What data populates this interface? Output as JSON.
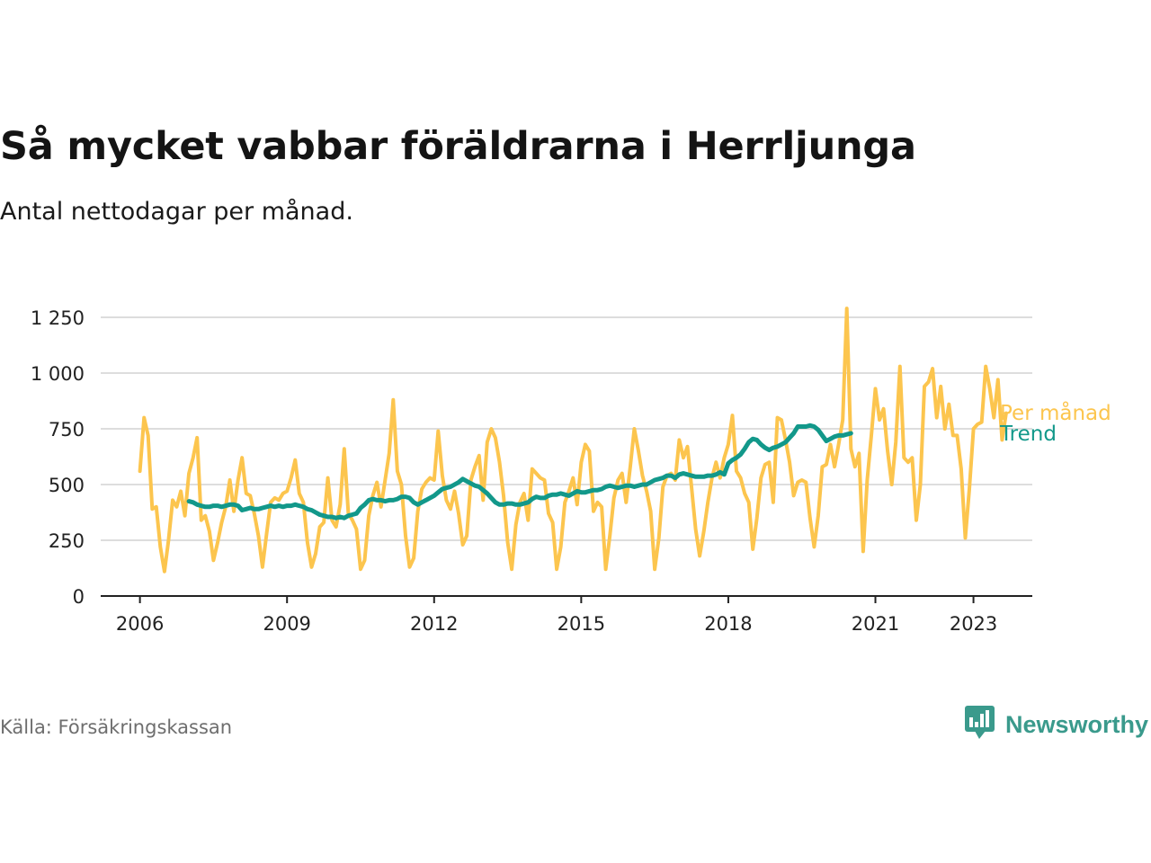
{
  "header": {
    "title": "Så mycket vabbar föräldrarna i Herrljunga",
    "subtitle": "Antal nettodagar per månad."
  },
  "footer": {
    "source": "Källa: Försäkringskassan",
    "brand": "Newsworthy"
  },
  "colors": {
    "monthly": "#FCC54E",
    "trend": "#12988A",
    "grid": "#dddddd",
    "axis": "#222222",
    "brand": "#3a9a8c"
  },
  "chart_data": {
    "type": "line",
    "title": "Så mycket vabbar föräldrarna i Herrljunga",
    "subtitle": "Antal nettodagar per månad.",
    "xlabel": "",
    "ylabel": "",
    "ylim": [
      0,
      1350
    ],
    "yticks": [
      0,
      250,
      500,
      750,
      1000,
      1250
    ],
    "ytick_labels": [
      "0",
      "250",
      "500",
      "750",
      "1 000",
      "1 250"
    ],
    "xticks": [
      2006,
      2009,
      2012,
      2015,
      2018,
      2021,
      2023
    ],
    "xlim": [
      2005.2,
      2024.2
    ],
    "grid": true,
    "legend": "inline-right",
    "series": [
      {
        "name": "Per månad",
        "start": [
          2006,
          1
        ],
        "values": [
          560,
          800,
          720,
          390,
          400,
          220,
          110,
          250,
          430,
          400,
          470,
          360,
          550,
          620,
          710,
          340,
          360,
          290,
          160,
          240,
          330,
          400,
          520,
          380,
          520,
          620,
          460,
          450,
          370,
          270,
          130,
          280,
          420,
          440,
          430,
          460,
          470,
          530,
          610,
          460,
          420,
          240,
          130,
          190,
          310,
          330,
          530,
          340,
          310,
          410,
          660,
          370,
          340,
          300,
          120,
          160,
          360,
          450,
          510,
          400,
          520,
          640,
          880,
          560,
          500,
          270,
          130,
          170,
          380,
          480,
          510,
          530,
          520,
          740,
          540,
          430,
          390,
          470,
          370,
          230,
          270,
          520,
          580,
          630,
          430,
          690,
          750,
          710,
          600,
          450,
          240,
          120,
          320,
          420,
          460,
          340,
          570,
          550,
          530,
          520,
          370,
          330,
          120,
          220,
          420,
          470,
          530,
          410,
          600,
          680,
          650,
          380,
          420,
          400,
          120,
          270,
          440,
          520,
          550,
          420,
          580,
          750,
          650,
          540,
          470,
          380,
          120,
          260,
          490,
          540,
          550,
          520,
          700,
          620,
          670,
          490,
          300,
          180,
          290,
          420,
          530,
          600,
          530,
          620,
          680,
          810,
          560,
          530,
          460,
          420,
          210,
          350,
          530,
          590,
          600,
          420,
          800,
          790,
          700,
          600,
          450,
          510,
          520,
          510,
          350,
          220,
          360,
          580,
          590,
          680,
          580,
          680,
          790,
          1290,
          660,
          580,
          640,
          200,
          520,
          720,
          930,
          790,
          840,
          650,
          500,
          690,
          1030,
          620,
          600,
          620,
          340,
          500,
          940,
          960,
          1020,
          800,
          940,
          750,
          860,
          720,
          720,
          570,
          260,
          480,
          750,
          770,
          780,
          1030,
          930,
          800,
          970,
          700,
          820
        ]
      },
      {
        "name": "Trend",
        "start": [
          2007,
          1
        ],
        "values": [
          425,
          420,
          410,
          405,
          400,
          400,
          405,
          405,
          400,
          405,
          410,
          410,
          405,
          385,
          390,
          395,
          390,
          390,
          395,
          400,
          405,
          400,
          405,
          400,
          405,
          405,
          410,
          405,
          400,
          390,
          385,
          375,
          365,
          360,
          355,
          355,
          350,
          355,
          350,
          360,
          365,
          370,
          395,
          410,
          430,
          435,
          430,
          430,
          425,
          430,
          430,
          435,
          445,
          445,
          440,
          420,
          410,
          420,
          430,
          440,
          450,
          465,
          480,
          485,
          490,
          500,
          510,
          525,
          515,
          505,
          495,
          490,
          475,
          460,
          440,
          420,
          410,
          410,
          415,
          415,
          410,
          410,
          415,
          420,
          435,
          445,
          440,
          440,
          450,
          455,
          455,
          460,
          455,
          450,
          460,
          470,
          465,
          465,
          470,
          475,
          475,
          480,
          490,
          495,
          490,
          485,
          490,
          495,
          495,
          490,
          495,
          500,
          500,
          510,
          520,
          525,
          530,
          540,
          540,
          530,
          545,
          550,
          545,
          540,
          535,
          535,
          535,
          540,
          540,
          545,
          555,
          545,
          595,
          610,
          620,
          635,
          660,
          690,
          705,
          700,
          680,
          665,
          655,
          665,
          670,
          680,
          690,
          710,
          730,
          760,
          760,
          760,
          765,
          760,
          745,
          720,
          695,
          705,
          715,
          720,
          720,
          725,
          730
        ]
      }
    ]
  }
}
